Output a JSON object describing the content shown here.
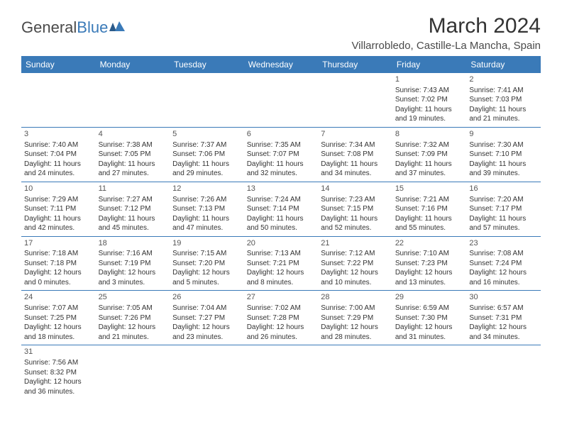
{
  "logo": {
    "text1": "General",
    "text2": "Blue"
  },
  "title": "March 2024",
  "location": "Villarrobledo, Castille-La Mancha, Spain",
  "colors": {
    "header_bg": "#3a7ab8",
    "header_text": "#ffffff",
    "border": "#3a7ab8",
    "body_text": "#333333",
    "logo_gray": "#4a4a4a",
    "logo_blue": "#3a7ab8",
    "background": "#ffffff"
  },
  "day_headers": [
    "Sunday",
    "Monday",
    "Tuesday",
    "Wednesday",
    "Thursday",
    "Friday",
    "Saturday"
  ],
  "weeks": [
    [
      null,
      null,
      null,
      null,
      null,
      {
        "n": "1",
        "sr": "Sunrise: 7:43 AM",
        "ss": "Sunset: 7:02 PM",
        "d1": "Daylight: 11 hours",
        "d2": "and 19 minutes."
      },
      {
        "n": "2",
        "sr": "Sunrise: 7:41 AM",
        "ss": "Sunset: 7:03 PM",
        "d1": "Daylight: 11 hours",
        "d2": "and 21 minutes."
      }
    ],
    [
      {
        "n": "3",
        "sr": "Sunrise: 7:40 AM",
        "ss": "Sunset: 7:04 PM",
        "d1": "Daylight: 11 hours",
        "d2": "and 24 minutes."
      },
      {
        "n": "4",
        "sr": "Sunrise: 7:38 AM",
        "ss": "Sunset: 7:05 PM",
        "d1": "Daylight: 11 hours",
        "d2": "and 27 minutes."
      },
      {
        "n": "5",
        "sr": "Sunrise: 7:37 AM",
        "ss": "Sunset: 7:06 PM",
        "d1": "Daylight: 11 hours",
        "d2": "and 29 minutes."
      },
      {
        "n": "6",
        "sr": "Sunrise: 7:35 AM",
        "ss": "Sunset: 7:07 PM",
        "d1": "Daylight: 11 hours",
        "d2": "and 32 minutes."
      },
      {
        "n": "7",
        "sr": "Sunrise: 7:34 AM",
        "ss": "Sunset: 7:08 PM",
        "d1": "Daylight: 11 hours",
        "d2": "and 34 minutes."
      },
      {
        "n": "8",
        "sr": "Sunrise: 7:32 AM",
        "ss": "Sunset: 7:09 PM",
        "d1": "Daylight: 11 hours",
        "d2": "and 37 minutes."
      },
      {
        "n": "9",
        "sr": "Sunrise: 7:30 AM",
        "ss": "Sunset: 7:10 PM",
        "d1": "Daylight: 11 hours",
        "d2": "and 39 minutes."
      }
    ],
    [
      {
        "n": "10",
        "sr": "Sunrise: 7:29 AM",
        "ss": "Sunset: 7:11 PM",
        "d1": "Daylight: 11 hours",
        "d2": "and 42 minutes."
      },
      {
        "n": "11",
        "sr": "Sunrise: 7:27 AM",
        "ss": "Sunset: 7:12 PM",
        "d1": "Daylight: 11 hours",
        "d2": "and 45 minutes."
      },
      {
        "n": "12",
        "sr": "Sunrise: 7:26 AM",
        "ss": "Sunset: 7:13 PM",
        "d1": "Daylight: 11 hours",
        "d2": "and 47 minutes."
      },
      {
        "n": "13",
        "sr": "Sunrise: 7:24 AM",
        "ss": "Sunset: 7:14 PM",
        "d1": "Daylight: 11 hours",
        "d2": "and 50 minutes."
      },
      {
        "n": "14",
        "sr": "Sunrise: 7:23 AM",
        "ss": "Sunset: 7:15 PM",
        "d1": "Daylight: 11 hours",
        "d2": "and 52 minutes."
      },
      {
        "n": "15",
        "sr": "Sunrise: 7:21 AM",
        "ss": "Sunset: 7:16 PM",
        "d1": "Daylight: 11 hours",
        "d2": "and 55 minutes."
      },
      {
        "n": "16",
        "sr": "Sunrise: 7:20 AM",
        "ss": "Sunset: 7:17 PM",
        "d1": "Daylight: 11 hours",
        "d2": "and 57 minutes."
      }
    ],
    [
      {
        "n": "17",
        "sr": "Sunrise: 7:18 AM",
        "ss": "Sunset: 7:18 PM",
        "d1": "Daylight: 12 hours",
        "d2": "and 0 minutes."
      },
      {
        "n": "18",
        "sr": "Sunrise: 7:16 AM",
        "ss": "Sunset: 7:19 PM",
        "d1": "Daylight: 12 hours",
        "d2": "and 3 minutes."
      },
      {
        "n": "19",
        "sr": "Sunrise: 7:15 AM",
        "ss": "Sunset: 7:20 PM",
        "d1": "Daylight: 12 hours",
        "d2": "and 5 minutes."
      },
      {
        "n": "20",
        "sr": "Sunrise: 7:13 AM",
        "ss": "Sunset: 7:21 PM",
        "d1": "Daylight: 12 hours",
        "d2": "and 8 minutes."
      },
      {
        "n": "21",
        "sr": "Sunrise: 7:12 AM",
        "ss": "Sunset: 7:22 PM",
        "d1": "Daylight: 12 hours",
        "d2": "and 10 minutes."
      },
      {
        "n": "22",
        "sr": "Sunrise: 7:10 AM",
        "ss": "Sunset: 7:23 PM",
        "d1": "Daylight: 12 hours",
        "d2": "and 13 minutes."
      },
      {
        "n": "23",
        "sr": "Sunrise: 7:08 AM",
        "ss": "Sunset: 7:24 PM",
        "d1": "Daylight: 12 hours",
        "d2": "and 16 minutes."
      }
    ],
    [
      {
        "n": "24",
        "sr": "Sunrise: 7:07 AM",
        "ss": "Sunset: 7:25 PM",
        "d1": "Daylight: 12 hours",
        "d2": "and 18 minutes."
      },
      {
        "n": "25",
        "sr": "Sunrise: 7:05 AM",
        "ss": "Sunset: 7:26 PM",
        "d1": "Daylight: 12 hours",
        "d2": "and 21 minutes."
      },
      {
        "n": "26",
        "sr": "Sunrise: 7:04 AM",
        "ss": "Sunset: 7:27 PM",
        "d1": "Daylight: 12 hours",
        "d2": "and 23 minutes."
      },
      {
        "n": "27",
        "sr": "Sunrise: 7:02 AM",
        "ss": "Sunset: 7:28 PM",
        "d1": "Daylight: 12 hours",
        "d2": "and 26 minutes."
      },
      {
        "n": "28",
        "sr": "Sunrise: 7:00 AM",
        "ss": "Sunset: 7:29 PM",
        "d1": "Daylight: 12 hours",
        "d2": "and 28 minutes."
      },
      {
        "n": "29",
        "sr": "Sunrise: 6:59 AM",
        "ss": "Sunset: 7:30 PM",
        "d1": "Daylight: 12 hours",
        "d2": "and 31 minutes."
      },
      {
        "n": "30",
        "sr": "Sunrise: 6:57 AM",
        "ss": "Sunset: 7:31 PM",
        "d1": "Daylight: 12 hours",
        "d2": "and 34 minutes."
      }
    ],
    [
      {
        "n": "31",
        "sr": "Sunrise: 7:56 AM",
        "ss": "Sunset: 8:32 PM",
        "d1": "Daylight: 12 hours",
        "d2": "and 36 minutes."
      },
      null,
      null,
      null,
      null,
      null,
      null
    ]
  ]
}
